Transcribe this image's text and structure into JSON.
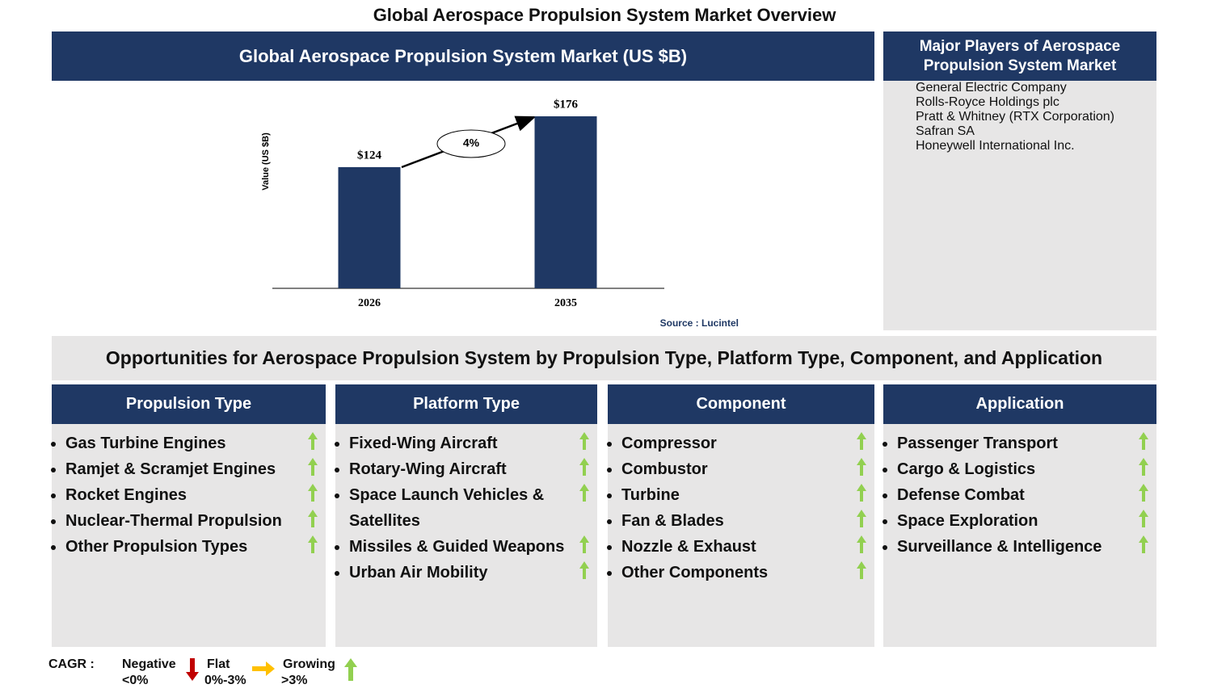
{
  "title": "Global Aerospace Propulsion System Market Overview",
  "chart_data": {
    "type": "bar",
    "title": "Global Aerospace Propulsion System Market (US $B)",
    "ylabel": "Value (US $B)",
    "categories": [
      "2026",
      "2035"
    ],
    "values": [
      124,
      176
    ],
    "value_labels": [
      "$124",
      "$176"
    ],
    "color": "#1f3864",
    "cagr_label": "4%",
    "source": "Source : Lucintel"
  },
  "players": {
    "title": "Major Players of Aerospace Propulsion System Market",
    "items": [
      "General Electric Company",
      "Rolls-Royce Holdings plc",
      "Pratt & Whitney (RTX Corporation)",
      "Safran SA",
      "Honeywell International Inc."
    ]
  },
  "opportunities": {
    "title": "Opportunities for Aerospace Propulsion System by Propulsion Type, Platform Type, Component, and Application",
    "columns": [
      {
        "title": "Propulsion Type",
        "items": [
          "Gas Turbine Engines",
          "Ramjet & Scramjet Engines",
          "Rocket Engines",
          "Nuclear-Thermal Propulsion",
          "Other Propulsion Types"
        ]
      },
      {
        "title": "Platform Type",
        "items": [
          "Fixed-Wing Aircraft",
          "Rotary-Wing Aircraft",
          "Space Launch Vehicles & Satellites",
          "Missiles & Guided Weapons",
          "Urban Air Mobility"
        ]
      },
      {
        "title": "Component",
        "items": [
          "Compressor",
          "Combustor",
          "Turbine",
          "Fan & Blades",
          "Nozzle & Exhaust",
          "Other Components"
        ]
      },
      {
        "title": "Application",
        "items": [
          "Passenger Transport",
          "Cargo & Logistics",
          "Defense Combat",
          "Space Exploration",
          "Surveillance & Intelligence"
        ]
      }
    ]
  },
  "legend": {
    "label": "CAGR :",
    "negative": "Negative",
    "negative_range": "<0%",
    "flat": "Flat",
    "flat_range": "0%-3%",
    "growing": "Growing",
    "growing_range": ">3%"
  }
}
